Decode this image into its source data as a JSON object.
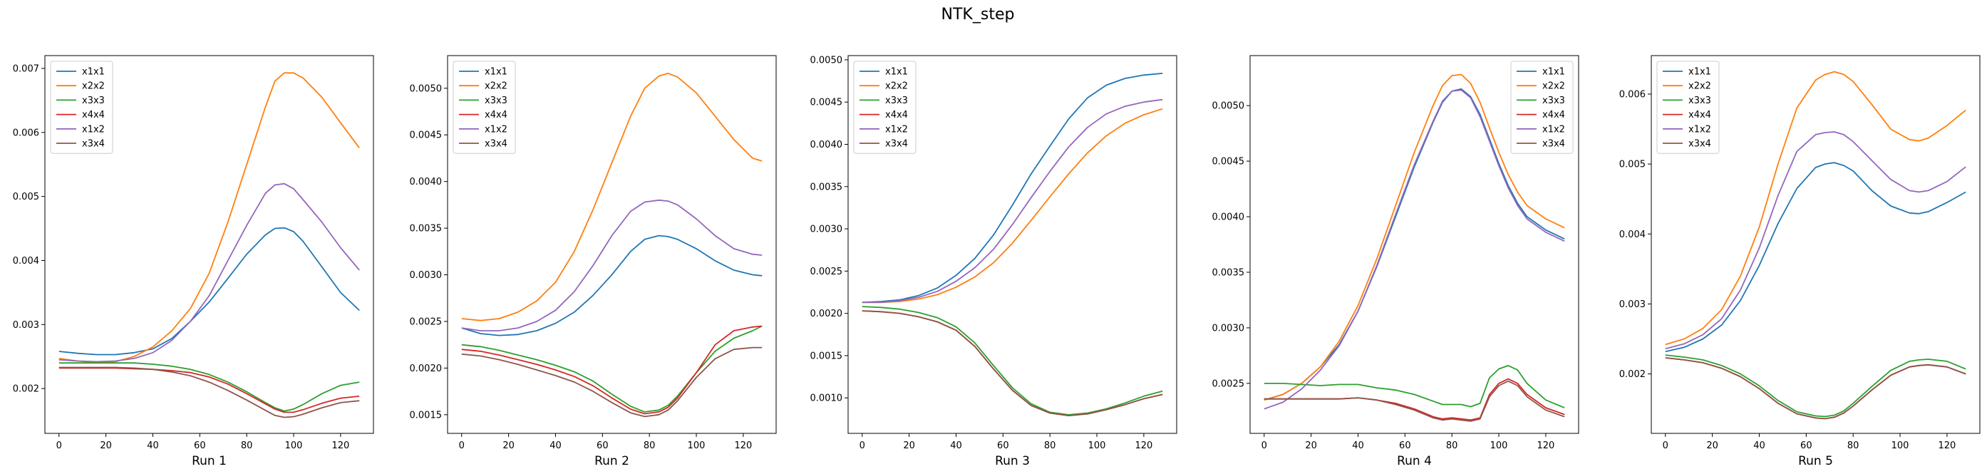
{
  "figure": {
    "title": "NTK_step",
    "series_colors": {
      "x1x1": "#1f77b4",
      "x2x2": "#ff7f0e",
      "x3x3": "#2ca02c",
      "x4x4": "#d62728",
      "x1x2": "#9467bd",
      "x3x4": "#8c564b"
    }
  },
  "chart_data": [
    {
      "type": "line",
      "xlabel": "Run 1",
      "legend": "top-left",
      "grid": false,
      "xlim": [
        -6,
        134
      ],
      "ylim": [
        0.0013,
        0.0072
      ],
      "xticks": [
        0,
        20,
        40,
        60,
        80,
        100,
        120
      ],
      "yticks": [
        0.002,
        0.003,
        0.004,
        0.005,
        0.006,
        0.007
      ],
      "ytick_labels": [
        "0.002",
        "0.003",
        "0.004",
        "0.005",
        "0.006",
        "0.007"
      ],
      "x": [
        0,
        8,
        16,
        24,
        32,
        40,
        48,
        56,
        64,
        72,
        80,
        88,
        92,
        96,
        100,
        104,
        112,
        120,
        128
      ],
      "series": [
        {
          "name": "x1x1",
          "values": [
            0.00258,
            0.00255,
            0.00253,
            0.00253,
            0.00256,
            0.00262,
            0.00278,
            0.00305,
            0.00335,
            0.00372,
            0.0041,
            0.0044,
            0.0045,
            0.00451,
            0.00445,
            0.0043,
            0.0039,
            0.0035,
            0.00322
          ]
        },
        {
          "name": "x2x2",
          "values": [
            0.00247,
            0.00243,
            0.0024,
            0.00242,
            0.0025,
            0.00265,
            0.0029,
            0.00325,
            0.0038,
            0.0046,
            0.0055,
            0.0064,
            0.0068,
            0.00693,
            0.00693,
            0.00685,
            0.00655,
            0.00615,
            0.00576
          ]
        },
        {
          "name": "x3x3",
          "values": [
            0.0024,
            0.0024,
            0.0024,
            0.0024,
            0.0024,
            0.00238,
            0.00235,
            0.0023,
            0.00222,
            0.0021,
            0.00195,
            0.00178,
            0.0017,
            0.00165,
            0.00168,
            0.00175,
            0.00192,
            0.00205,
            0.0021
          ]
        },
        {
          "name": "x4x4",
          "values": [
            0.00232,
            0.00232,
            0.00232,
            0.00232,
            0.00231,
            0.0023,
            0.00228,
            0.00225,
            0.00218,
            0.00207,
            0.00192,
            0.00176,
            0.00168,
            0.00163,
            0.00163,
            0.00167,
            0.00177,
            0.00185,
            0.00188
          ]
        },
        {
          "name": "x1x2",
          "values": [
            0.00245,
            0.00243,
            0.00242,
            0.00243,
            0.00247,
            0.00256,
            0.00275,
            0.00305,
            0.00345,
            0.004,
            0.00455,
            0.00505,
            0.00518,
            0.0052,
            0.00512,
            0.00495,
            0.0046,
            0.0042,
            0.00385
          ]
        },
        {
          "name": "x3x4",
          "values": [
            0.00233,
            0.00233,
            0.00233,
            0.00233,
            0.00232,
            0.0023,
            0.00226,
            0.0022,
            0.0021,
            0.00197,
            0.00182,
            0.00166,
            0.00158,
            0.00155,
            0.00156,
            0.0016,
            0.0017,
            0.00178,
            0.00181
          ]
        }
      ]
    },
    {
      "type": "line",
      "xlabel": "Run 2",
      "legend": "top-left",
      "grid": false,
      "xlim": [
        -6,
        134
      ],
      "ylim": [
        0.0013,
        0.00535
      ],
      "xticks": [
        0,
        20,
        40,
        60,
        80,
        100,
        120
      ],
      "yticks": [
        0.0015,
        0.002,
        0.0025,
        0.003,
        0.0035,
        0.004,
        0.0045,
        0.005
      ],
      "ytick_labels": [
        "0.0015",
        "0.0020",
        "0.0025",
        "0.0030",
        "0.0035",
        "0.0040",
        "0.0045",
        "0.0050"
      ],
      "x": [
        0,
        8,
        16,
        24,
        32,
        40,
        48,
        56,
        64,
        72,
        78,
        84,
        88,
        92,
        100,
        108,
        116,
        124,
        128
      ],
      "series": [
        {
          "name": "x1x1",
          "values": [
            0.00243,
            0.00237,
            0.00235,
            0.00236,
            0.0024,
            0.00248,
            0.0026,
            0.00278,
            0.003,
            0.00325,
            0.00338,
            0.00342,
            0.00341,
            0.00338,
            0.00328,
            0.00315,
            0.00305,
            0.003,
            0.00299
          ]
        },
        {
          "name": "x2x2",
          "values": [
            0.00253,
            0.00251,
            0.00253,
            0.0026,
            0.00272,
            0.00292,
            0.00325,
            0.0037,
            0.0042,
            0.0047,
            0.005,
            0.00513,
            0.00516,
            0.00512,
            0.00495,
            0.0047,
            0.00445,
            0.00425,
            0.00422
          ]
        },
        {
          "name": "x3x3",
          "values": [
            0.00225,
            0.00223,
            0.00219,
            0.00214,
            0.00209,
            0.00203,
            0.00196,
            0.00186,
            0.00172,
            0.00159,
            0.00153,
            0.00155,
            0.0016,
            0.0017,
            0.00195,
            0.00218,
            0.00232,
            0.0024,
            0.00245
          ]
        },
        {
          "name": "x4x4",
          "values": [
            0.0022,
            0.00218,
            0.00214,
            0.00209,
            0.00204,
            0.00198,
            0.00191,
            0.00181,
            0.00168,
            0.00156,
            0.00151,
            0.00153,
            0.00158,
            0.00168,
            0.00195,
            0.00225,
            0.0024,
            0.00244,
            0.00245
          ]
        },
        {
          "name": "x1x2",
          "values": [
            0.00243,
            0.0024,
            0.0024,
            0.00243,
            0.0025,
            0.00262,
            0.00282,
            0.0031,
            0.00342,
            0.00368,
            0.00378,
            0.0038,
            0.00379,
            0.00375,
            0.0036,
            0.00342,
            0.00328,
            0.00322,
            0.00321
          ]
        },
        {
          "name": "x3x4",
          "values": [
            0.00215,
            0.00213,
            0.00209,
            0.00204,
            0.00198,
            0.00192,
            0.00185,
            0.00175,
            0.00163,
            0.00152,
            0.00148,
            0.0015,
            0.00155,
            0.00165,
            0.0019,
            0.0021,
            0.0022,
            0.00222,
            0.00222
          ]
        }
      ]
    },
    {
      "type": "line",
      "xlabel": "Run 3",
      "legend": "top-left",
      "grid": false,
      "xlim": [
        -6,
        134
      ],
      "ylim": [
        0.00058,
        0.00505
      ],
      "xticks": [
        0,
        20,
        40,
        60,
        80,
        100,
        120
      ],
      "yticks": [
        0.001,
        0.0015,
        0.002,
        0.0025,
        0.003,
        0.0035,
        0.004,
        0.0045,
        0.005
      ],
      "ytick_labels": [
        "0.0010",
        "0.0015",
        "0.0020",
        "0.0025",
        "0.0030",
        "0.0035",
        "0.0040",
        "0.0045",
        "0.0050"
      ],
      "x": [
        0,
        8,
        16,
        24,
        32,
        40,
        48,
        56,
        64,
        72,
        80,
        88,
        96,
        104,
        112,
        120,
        128
      ],
      "series": [
        {
          "name": "x1x1",
          "values": [
            0.00213,
            0.00214,
            0.00216,
            0.00221,
            0.0023,
            0.00245,
            0.00265,
            0.00293,
            0.00328,
            0.00365,
            0.00398,
            0.0043,
            0.00455,
            0.0047,
            0.00478,
            0.00482,
            0.00484
          ]
        },
        {
          "name": "x2x2",
          "values": [
            0.00213,
            0.00213,
            0.00214,
            0.00217,
            0.00222,
            0.00231,
            0.00243,
            0.0026,
            0.00283,
            0.0031,
            0.00338,
            0.00365,
            0.0039,
            0.0041,
            0.00425,
            0.00435,
            0.00442
          ]
        },
        {
          "name": "x3x3",
          "values": [
            0.00208,
            0.00207,
            0.00205,
            0.00201,
            0.00195,
            0.00184,
            0.00165,
            0.00138,
            0.00112,
            0.00093,
            0.00083,
            0.0008,
            0.00082,
            0.00087,
            0.00094,
            0.00102,
            0.00108
          ]
        },
        {
          "name": "x4x4",
          "values": [
            0.00203,
            0.00202,
            0.002,
            0.00196,
            0.0019,
            0.0018,
            0.00161,
            0.00134,
            0.00109,
            0.00091,
            0.00082,
            0.00079,
            0.00081,
            0.00086,
            0.00092,
            0.00099,
            0.00104
          ]
        },
        {
          "name": "x1x2",
          "values": [
            0.00213,
            0.00213,
            0.00215,
            0.00219,
            0.00226,
            0.00238,
            0.00254,
            0.00276,
            0.00305,
            0.00337,
            0.00368,
            0.00397,
            0.0042,
            0.00436,
            0.00445,
            0.0045,
            0.00453
          ]
        },
        {
          "name": "x3x4",
          "values": [
            0.00203,
            0.00202,
            0.002,
            0.00196,
            0.0019,
            0.0018,
            0.00161,
            0.00134,
            0.00109,
            0.00091,
            0.00082,
            0.00079,
            0.00081,
            0.00086,
            0.00092,
            0.00099,
            0.00104
          ]
        }
      ]
    },
    {
      "type": "line",
      "xlabel": "Run 4",
      "legend": "top-right",
      "grid": false,
      "xlim": [
        -6,
        134
      ],
      "ylim": [
        0.00205,
        0.00545
      ],
      "xticks": [
        0,
        20,
        40,
        60,
        80,
        100,
        120
      ],
      "yticks": [
        0.0025,
        0.003,
        0.0035,
        0.004,
        0.0045,
        0.005
      ],
      "ytick_labels": [
        "0.0025",
        "0.0030",
        "0.0035",
        "0.0040",
        "0.0045",
        "0.0050"
      ],
      "x": [
        0,
        8,
        16,
        24,
        32,
        40,
        48,
        56,
        64,
        72,
        76,
        80,
        84,
        88,
        92,
        96,
        100,
        104,
        108,
        112,
        120,
        128
      ],
      "series": [
        {
          "name": "x1x1",
          "values": [
            0.00235,
            0.0024,
            0.0025,
            0.00265,
            0.00285,
            0.00315,
            0.00355,
            0.004,
            0.00445,
            0.00485,
            0.00503,
            0.00513,
            0.00515,
            0.00508,
            0.00492,
            0.0047,
            0.00448,
            0.00428,
            0.00412,
            0.004,
            0.00388,
            0.0038
          ]
        },
        {
          "name": "x2x2",
          "values": [
            0.00235,
            0.0024,
            0.0025,
            0.00265,
            0.00288,
            0.0032,
            0.00362,
            0.0041,
            0.00458,
            0.005,
            0.00518,
            0.00527,
            0.00528,
            0.0052,
            0.00503,
            0.0048,
            0.00458,
            0.00438,
            0.00422,
            0.0041,
            0.00398,
            0.0039
          ]
        },
        {
          "name": "x3x3",
          "values": [
            0.0025,
            0.0025,
            0.00249,
            0.00248,
            0.00249,
            0.00249,
            0.00246,
            0.00244,
            0.0024,
            0.00234,
            0.00231,
            0.00231,
            0.00231,
            0.00229,
            0.00232,
            0.00255,
            0.00263,
            0.00266,
            0.00262,
            0.0025,
            0.00235,
            0.00228
          ]
        },
        {
          "name": "x4x4",
          "values": [
            0.00236,
            0.00236,
            0.00236,
            0.00236,
            0.00236,
            0.00237,
            0.00235,
            0.00232,
            0.00227,
            0.0022,
            0.00218,
            0.00219,
            0.00218,
            0.00217,
            0.00219,
            0.0024,
            0.0025,
            0.00254,
            0.0025,
            0.0024,
            0.00228,
            0.00222
          ]
        },
        {
          "name": "x1x2",
          "values": [
            0.00227,
            0.00233,
            0.00245,
            0.00262,
            0.00284,
            0.00315,
            0.00356,
            0.00402,
            0.00447,
            0.00486,
            0.00504,
            0.00513,
            0.00514,
            0.00507,
            0.0049,
            0.00468,
            0.00446,
            0.00426,
            0.0041,
            0.00398,
            0.00386,
            0.00378
          ]
        },
        {
          "name": "x3x4",
          "values": [
            0.00236,
            0.00236,
            0.00236,
            0.00236,
            0.00236,
            0.00237,
            0.00235,
            0.00231,
            0.00226,
            0.00219,
            0.00217,
            0.00218,
            0.00217,
            0.00216,
            0.00218,
            0.00238,
            0.00248,
            0.00252,
            0.00248,
            0.00238,
            0.00226,
            0.0022
          ]
        }
      ]
    },
    {
      "type": "line",
      "xlabel": "Run 5",
      "legend": "top-left",
      "grid": false,
      "xlim": [
        -6,
        134
      ],
      "ylim": [
        0.00115,
        0.00655
      ],
      "xticks": [
        0,
        20,
        40,
        60,
        80,
        100,
        120
      ],
      "yticks": [
        0.002,
        0.003,
        0.004,
        0.005,
        0.006
      ],
      "ytick_labels": [
        "0.002",
        "0.003",
        "0.004",
        "0.005",
        "0.006"
      ],
      "x": [
        0,
        8,
        16,
        24,
        32,
        40,
        48,
        56,
        64,
        68,
        72,
        76,
        80,
        88,
        96,
        104,
        108,
        112,
        120,
        128
      ],
      "series": [
        {
          "name": "x1x1",
          "values": [
            0.00232,
            0.00238,
            0.0025,
            0.0027,
            0.00305,
            0.00355,
            0.00415,
            0.00465,
            0.00495,
            0.005,
            0.00502,
            0.00498,
            0.0049,
            0.00462,
            0.0044,
            0.0043,
            0.00429,
            0.00432,
            0.00445,
            0.0046
          ]
        },
        {
          "name": "x2x2",
          "values": [
            0.00242,
            0.0025,
            0.00265,
            0.00292,
            0.0034,
            0.0041,
            0.005,
            0.0058,
            0.0062,
            0.00628,
            0.00632,
            0.00628,
            0.00618,
            0.00585,
            0.0055,
            0.00535,
            0.00533,
            0.00537,
            0.00555,
            0.00577
          ]
        },
        {
          "name": "x3x3",
          "values": [
            0.00227,
            0.00224,
            0.0022,
            0.00212,
            0.002,
            0.00183,
            0.00162,
            0.00146,
            0.0014,
            0.00139,
            0.00141,
            0.00147,
            0.00158,
            0.00182,
            0.00205,
            0.00218,
            0.0022,
            0.00221,
            0.00218,
            0.00207
          ]
        },
        {
          "name": "x4x4",
          "values": [
            0.00223,
            0.0022,
            0.00216,
            0.00208,
            0.00196,
            0.00179,
            0.00158,
            0.00143,
            0.00137,
            0.00136,
            0.00138,
            0.00144,
            0.00154,
            0.00177,
            0.00198,
            0.0021,
            0.00212,
            0.00213,
            0.0021,
            0.002
          ]
        },
        {
          "name": "x1x2",
          "values": [
            0.00236,
            0.00243,
            0.00256,
            0.00279,
            0.0032,
            0.0038,
            0.00455,
            0.00518,
            0.00542,
            0.00545,
            0.00546,
            0.00542,
            0.00532,
            0.00505,
            0.00478,
            0.00462,
            0.0046,
            0.00462,
            0.00475,
            0.00496
          ]
        },
        {
          "name": "x3x4",
          "values": [
            0.00223,
            0.0022,
            0.00216,
            0.00208,
            0.00196,
            0.00179,
            0.00158,
            0.00143,
            0.00137,
            0.00136,
            0.00138,
            0.00144,
            0.00154,
            0.00177,
            0.00198,
            0.0021,
            0.00212,
            0.00213,
            0.0021,
            0.002
          ]
        }
      ]
    }
  ]
}
